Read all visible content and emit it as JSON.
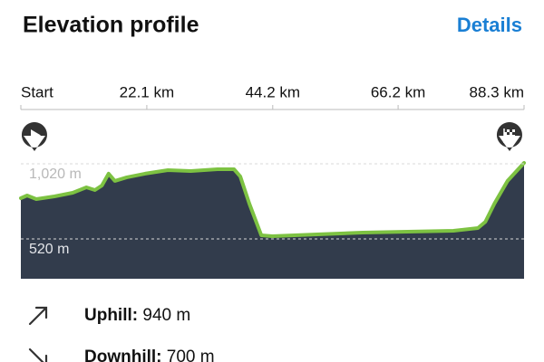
{
  "header": {
    "title": "Elevation profile",
    "action": "Details"
  },
  "chart_data": {
    "type": "area",
    "x": [
      0,
      1.1,
      2.7,
      5.9,
      9.1,
      11.5,
      13.0,
      14.2,
      15.4,
      16.5,
      18.6,
      21.8,
      25.8,
      29.8,
      34.5,
      37.4,
      38.5,
      40.1,
      42.2,
      44.1,
      52.0,
      60.0,
      67.9,
      75.9,
      80.2,
      81.5,
      83.1,
      85.4,
      88.3
    ],
    "values": [
      791,
      809,
      785,
      803,
      827,
      863,
      845,
      875,
      954,
      906,
      930,
      954,
      978,
      972,
      984,
      984,
      936,
      755,
      544,
      538,
      550,
      562,
      568,
      574,
      592,
      634,
      755,
      906,
      1026
    ],
    "color": "#7dc242",
    "fill": "#323c4c",
    "xlim": [
      0,
      88.3
    ],
    "xticks": [
      {
        "value": 0,
        "label": "Start"
      },
      {
        "value": 22.1,
        "label": "22.1 km"
      },
      {
        "value": 44.2,
        "label": "44.2 km"
      },
      {
        "value": 66.2,
        "label": "66.2 km"
      },
      {
        "value": 88.3,
        "label": "88.3 km"
      }
    ],
    "ylim": [
      255,
      1050
    ],
    "yticks": [
      {
        "value": 520,
        "label": "520 m"
      },
      {
        "value": 1020,
        "label": "1,020 m"
      }
    ],
    "grid": true
  },
  "stats": [
    {
      "label": "Uphill:",
      "value": "940 m"
    },
    {
      "label": "Downhill:",
      "value": "700 m"
    }
  ]
}
